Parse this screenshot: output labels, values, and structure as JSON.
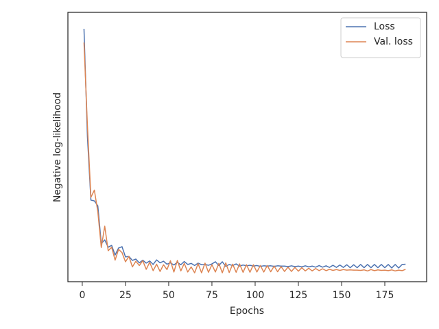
{
  "chart_data": {
    "type": "line",
    "xlabel": "Epochs",
    "ylabel": "Negative log-likelihood",
    "x": [
      1,
      3,
      5,
      7,
      9,
      11,
      13,
      15,
      17,
      19,
      21,
      23,
      25,
      27,
      29,
      31,
      33,
      35,
      37,
      39,
      41,
      43,
      45,
      47,
      49,
      51,
      53,
      55,
      57,
      59,
      61,
      63,
      65,
      67,
      69,
      71,
      73,
      75,
      77,
      79,
      81,
      83,
      85,
      87,
      89,
      91,
      93,
      95,
      97,
      99,
      101,
      103,
      105,
      107,
      109,
      111,
      113,
      115,
      117,
      119,
      121,
      123,
      125,
      127,
      129,
      131,
      133,
      135,
      137,
      139,
      141,
      143,
      145,
      147,
      149,
      151,
      153,
      155,
      157,
      159,
      161,
      163,
      165,
      167,
      169,
      171,
      173,
      175,
      177,
      179,
      181,
      183,
      185,
      187
    ],
    "series": [
      {
        "name": "Loss",
        "color": "#4c72b0",
        "values": [
          93.9,
          53.7,
          30.3,
          30.0,
          28.2,
          14.2,
          15.5,
          12.8,
          13.5,
          9.9,
          12.5,
          13.0,
          9.2,
          9.4,
          7.9,
          8.4,
          7.0,
          8.0,
          6.9,
          7.7,
          6.4,
          8.1,
          7.0,
          7.6,
          6.5,
          7.0,
          6.2,
          7.2,
          6.3,
          7.5,
          6.4,
          6.8,
          6.0,
          6.9,
          6.3,
          6.4,
          6.1,
          6.6,
          7.4,
          6.0,
          7.4,
          5.7,
          6.4,
          6.0,
          6.6,
          5.8,
          6.2,
          5.9,
          6.1,
          5.8,
          6.0,
          5.7,
          5.9,
          5.8,
          5.9,
          5.7,
          5.9,
          5.8,
          5.8,
          5.6,
          5.9,
          5.6,
          5.8,
          5.5,
          5.9,
          5.5,
          5.8,
          5.4,
          6.0,
          5.4,
          5.9,
          5.3,
          6.1,
          5.3,
          6.2,
          5.3,
          6.3,
          5.2,
          6.3,
          5.2,
          6.4,
          5.2,
          6.4,
          5.2,
          6.4,
          5.2,
          6.4,
          5.2,
          6.4,
          5.1,
          6.4,
          5.1,
          6.4,
          6.5
        ]
      },
      {
        "name": "Val. loss",
        "color": "#dd8452",
        "values": [
          88.8,
          57.8,
          31.3,
          34.0,
          26.0,
          12.7,
          20.6,
          11.5,
          12.8,
          8.0,
          12.0,
          10.8,
          7.4,
          9.4,
          5.5,
          7.6,
          6.0,
          7.8,
          4.6,
          7.2,
          4.1,
          6.5,
          3.8,
          6.3,
          4.5,
          7.8,
          3.6,
          7.9,
          4.0,
          6.8,
          3.6,
          5.5,
          3.3,
          6.7,
          3.3,
          6.9,
          3.5,
          6.3,
          3.6,
          6.8,
          3.3,
          7.0,
          3.4,
          6.5,
          3.5,
          6.6,
          3.5,
          6.3,
          3.5,
          6.3,
          3.6,
          6.0,
          3.6,
          6.0,
          3.7,
          5.8,
          3.7,
          5.6,
          3.8,
          5.4,
          3.8,
          5.3,
          3.9,
          5.2,
          4.0,
          5.0,
          4.0,
          4.9,
          4.1,
          4.8,
          4.1,
          4.6,
          4.2,
          4.5,
          4.2,
          4.5,
          4.3,
          4.4,
          4.3,
          4.3,
          4.2,
          4.4,
          4.0,
          4.5,
          4.1,
          4.4,
          4.2,
          4.3,
          4.1,
          4.4,
          4.0,
          4.3,
          4.1,
          4.6
        ]
      }
    ],
    "xlim": [
      -8.3,
      199.2
    ],
    "ylim": [
      0,
      100
    ],
    "xticks": [
      0,
      25,
      50,
      75,
      100,
      125,
      150,
      175
    ],
    "legend": "upper right"
  }
}
